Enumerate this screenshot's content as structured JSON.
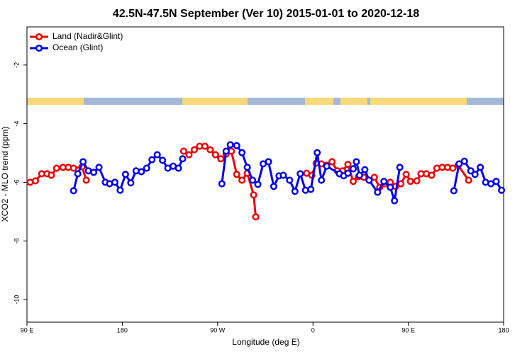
{
  "chart_data": {
    "type": "line",
    "title": "42.5N-47.5N September (Ver 10)   2015-01-01 to 2020-12-18",
    "x_label": "Longitude (deg E)",
    "y_label": "XCO2 - MLO trend (ppm)",
    "xlim": [
      90,
      540
    ],
    "ylim": [
      -10.77,
      -0.7
    ],
    "xticks": [
      {
        "value": 90,
        "label": "90 E"
      },
      180,
      {
        "value": 270,
        "label": "90 W"
      },
      {
        "value": 360,
        "label": "0"
      },
      {
        "value": 450,
        "label": "90 E"
      },
      {
        "value": 540,
        "label": "180"
      }
    ],
    "yticks": [
      -2,
      -4,
      -6,
      -8,
      -10
    ],
    "legend": "top-left",
    "series": [
      {
        "name": "Land (Nadir&Glint)",
        "color": "#ee0000",
        "x": [
          93,
          98,
          104,
          109,
          113,
          118,
          124,
          129,
          134,
          142,
          146,
          null,
          238,
          243,
          248,
          253,
          258,
          263,
          268,
          273,
          278,
          283,
          288,
          293,
          298,
          304,
          306,
          null,
          354,
          359,
          363,
          368,
          373,
          378,
          383,
          388,
          393,
          398,
          403,
          408,
          413,
          418,
          423,
          428,
          433,
          438,
          443,
          448,
          452,
          458,
          462,
          467,
          472,
          477,
          482,
          487,
          492,
          497,
          507
        ],
        "values": [
          -6.0,
          -5.95,
          -5.71,
          -5.71,
          -5.76,
          -5.52,
          -5.49,
          -5.49,
          -5.52,
          -5.47,
          -5.93,
          null,
          -4.94,
          -5.06,
          -4.89,
          -4.77,
          -4.77,
          -4.89,
          -5.06,
          -5.2,
          -5.04,
          -4.94,
          -5.73,
          -5.93,
          -5.69,
          -6.43,
          -7.18,
          null,
          -5.69,
          -5.76,
          -5.35,
          -5.37,
          -5.42,
          -5.3,
          -5.61,
          -5.61,
          -5.39,
          -5.97,
          -5.81,
          -5.83,
          -5.93,
          -5.83,
          -6.17,
          -6.05,
          -6.0,
          -6.14,
          -6.05,
          -5.73,
          -5.97,
          -5.95,
          -5.71,
          -5.71,
          -5.76,
          -5.52,
          -5.49,
          -5.49,
          -5.52,
          -5.42,
          -5.93
        ]
      },
      {
        "name": "Ocean (Glint)",
        "color": "#0000ee",
        "x": [
          134,
          138,
          143,
          148,
          153,
          158,
          164,
          168,
          173,
          178,
          183,
          188,
          193,
          198,
          203,
          208,
          213,
          218,
          223,
          228,
          233,
          237,
          null,
          274,
          278,
          282,
          288,
          293,
          298,
          303,
          308,
          313,
          318,
          323,
          328,
          332,
          338,
          343,
          348,
          353,
          358,
          364,
          368,
          373,
          385,
          389,
          393,
          398,
          401,
          404,
          409,
          413,
          421,
          427,
          433,
          437,
          442,
          null,
          493,
          498,
          503,
          509,
          513,
          518,
          523,
          528,
          533,
          538
        ],
        "values": [
          -6.29,
          -5.71,
          -5.3,
          -5.61,
          -5.66,
          -5.49,
          -6.0,
          -6.05,
          -6.0,
          -6.27,
          -5.73,
          -6.02,
          -5.61,
          -5.64,
          -5.52,
          -5.23,
          -5.06,
          -5.25,
          -5.52,
          -5.45,
          -5.52,
          -5.2,
          null,
          -6.05,
          -4.94,
          -4.72,
          -4.75,
          -4.99,
          -5.49,
          -5.93,
          -6.07,
          -5.37,
          -5.3,
          -6.14,
          -5.78,
          -5.76,
          -5.93,
          -6.31,
          -5.71,
          -6.27,
          -6.24,
          -4.99,
          -5.93,
          -5.45,
          -5.71,
          -5.78,
          -5.69,
          -5.54,
          -5.3,
          -5.76,
          -5.57,
          -5.93,
          -6.34,
          -5.97,
          -6.17,
          -6.63,
          -5.49,
          null,
          -6.29,
          -5.37,
          -5.28,
          -5.61,
          -5.73,
          -5.49,
          -6.0,
          -6.05,
          -5.97,
          -6.27
        ]
      }
    ]
  }
}
